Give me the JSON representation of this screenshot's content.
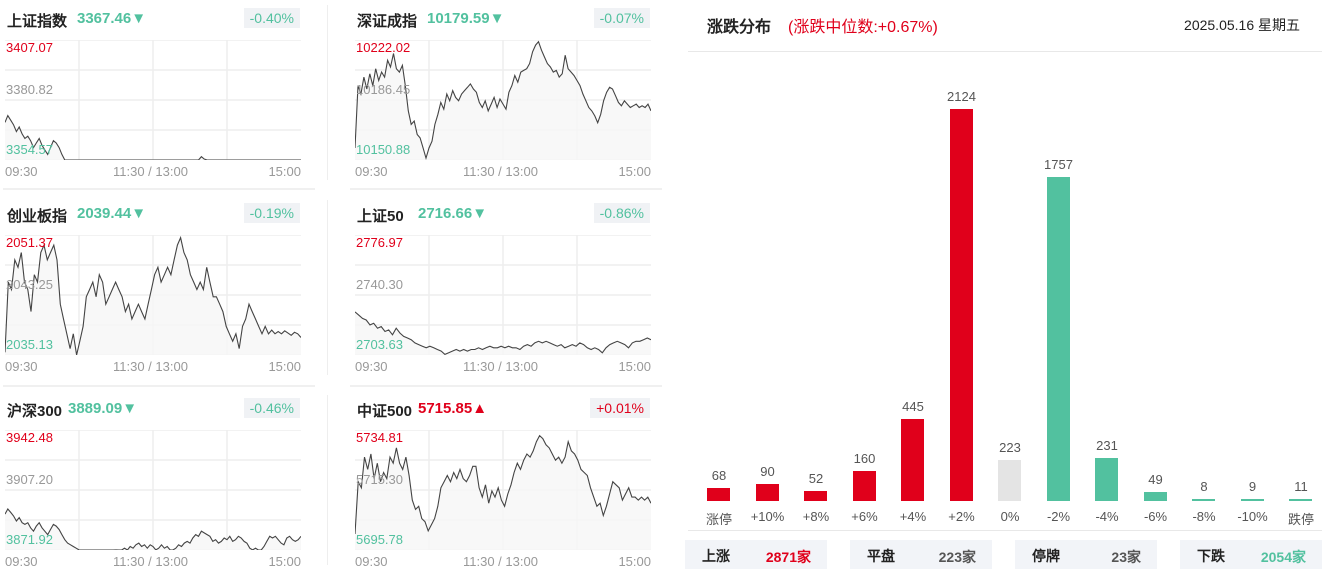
{
  "indices": [
    {
      "name": "上证指数",
      "value": "3367.46",
      "arrow": "▼",
      "dir": "down",
      "pct": "-0.40%",
      "y_high": "3407.07",
      "y_mid": "3380.82",
      "y_low": "3354.57",
      "series": [
        3371,
        3374,
        3372,
        3370,
        3367,
        3369,
        3366,
        3364,
        3365,
        3363,
        3360,
        3362,
        3364,
        3361,
        3359,
        3357,
        3360,
        3363,
        3362,
        3360,
        3357,
        3354,
        3351,
        3349,
        3349,
        3347,
        3346,
        3345,
        3343,
        3341,
        3342,
        3340,
        3339,
        3340,
        3343,
        3342,
        3344,
        3343,
        3344,
        3345,
        3344,
        3343,
        3346,
        3344,
        3347,
        3346,
        3348,
        3349,
        3347,
        3348,
        3346,
        3348,
        3347,
        3345,
        3346,
        3348,
        3346,
        3347,
        3345,
        3344,
        3346,
        3348,
        3347,
        3349,
        3350,
        3349,
        3352,
        3354,
        3353,
        3356,
        3355,
        3354,
        3353,
        3350,
        3351,
        3349,
        3350,
        3352,
        3351,
        3353,
        3350,
        3351,
        3353,
        3352,
        3350,
        3349,
        3346,
        3345,
        3346,
        3344,
        3343,
        3347,
        3350,
        3353,
        3352,
        3353,
        3351,
        3349,
        3348,
        3352,
        3353,
        3351,
        3350,
        3351,
        3353
      ]
    },
    {
      "name": "深证成指",
      "value": "10179.59",
      "arrow": "▼",
      "dir": "down",
      "pct": "-0.07%",
      "y_high": "10222.02",
      "y_mid": "10186.45",
      "y_low": "10150.88",
      "series": [
        10158,
        10195,
        10190,
        10200,
        10193,
        10202,
        10195,
        10205,
        10198,
        10203,
        10200,
        10210,
        10206,
        10214,
        10205,
        10203,
        10207,
        10195,
        10180,
        10172,
        10174,
        10166,
        10164,
        10158,
        10152,
        10158,
        10162,
        10172,
        10178,
        10185,
        10181,
        10190,
        10186,
        10192,
        10188,
        10186,
        10190,
        10192,
        10194,
        10196,
        10193,
        10191,
        10185,
        10182,
        10186,
        10180,
        10184,
        10188,
        10182,
        10187,
        10184,
        10181,
        10191,
        10195,
        10201,
        10197,
        10203,
        10204,
        10205,
        10208,
        10215,
        10219,
        10221,
        10216,
        10212,
        10208,
        10206,
        10203,
        10204,
        10200,
        10202,
        10213,
        10205,
        10203,
        10201,
        10198,
        10195,
        10190,
        10186,
        10182,
        10180,
        10177,
        10173,
        10178,
        10186,
        10191,
        10194,
        10193,
        10189,
        10185,
        10183,
        10186,
        10184,
        10182,
        10183,
        10184,
        10182,
        10183,
        10182,
        10184,
        10180
      ]
    },
    {
      "name": "创业板指",
      "value": "2039.44",
      "arrow": "▼",
      "dir": "down",
      "pct": "-0.19%",
      "y_high": "2051.37",
      "y_mid": "2043.25",
      "y_low": "2035.13",
      "series": [
        2035.5,
        2045,
        2044,
        2048,
        2047,
        2049,
        2045,
        2044,
        2041,
        2046,
        2045,
        2049,
        2050,
        2048,
        2049,
        2050,
        2048,
        2042,
        2040,
        2038,
        2036,
        2038,
        2035,
        2037,
        2039,
        2043,
        2044,
        2045,
        2043,
        2046,
        2045,
        2042,
        2043,
        2044,
        2045,
        2044,
        2043,
        2041,
        2042,
        2040,
        2041,
        2042,
        2041,
        2040,
        2042,
        2044,
        2046,
        2047,
        2045,
        2046,
        2047,
        2046,
        2048,
        2050,
        2051,
        2049,
        2048,
        2046,
        2045,
        2044,
        2045,
        2044,
        2047,
        2045,
        2043,
        2043,
        2042,
        2041,
        2039,
        2038,
        2037,
        2038,
        2036,
        2039,
        2040,
        2042,
        2041,
        2040,
        2039,
        2038,
        2039,
        2038,
        2038.5,
        2038,
        2038.3,
        2038,
        2038.4,
        2038.1,
        2037.8,
        2038.2,
        2038,
        2037.5
      ]
    },
    {
      "name": "上证50",
      "value": "2716.66",
      "arrow": "▼",
      "dir": "down",
      "pct": "-0.86%",
      "y_high": "2776.97",
      "y_mid": "2740.30",
      "y_low": "2703.63",
      "series": [
        2730,
        2728,
        2726,
        2725,
        2722,
        2723,
        2720,
        2721,
        2718,
        2719,
        2716,
        2720,
        2717,
        2715,
        2714,
        2713,
        2711,
        2710,
        2709,
        2708,
        2709,
        2708,
        2707,
        2706,
        2704,
        2705,
        2706,
        2707,
        2706,
        2707,
        2706,
        2707,
        2707,
        2708,
        2707,
        2708,
        2709,
        2708,
        2708,
        2709,
        2708,
        2709,
        2708,
        2708,
        2707,
        2709,
        2710,
        2709,
        2711,
        2712,
        2711,
        2712,
        2711,
        2710,
        2709,
        2710,
        2708,
        2709,
        2710,
        2709,
        2711,
        2710,
        2708,
        2707,
        2708,
        2707,
        2705,
        2708,
        2710,
        2711,
        2712,
        2711,
        2710,
        2708,
        2711,
        2712,
        2712,
        2713,
        2714,
        2713
      ]
    },
    {
      "name": "沪深300",
      "value": "3889.09",
      "arrow": "▼",
      "dir": "down",
      "pct": "-0.46%",
      "y_high": "3942.48",
      "y_mid": "3907.20",
      "y_low": "3871.92",
      "series": [
        3893,
        3896,
        3894,
        3892,
        3889,
        3891,
        3888,
        3887,
        3888,
        3885,
        3883,
        3886,
        3888,
        3885,
        3883,
        3881,
        3884,
        3887,
        3886,
        3884,
        3881,
        3878,
        3876,
        3875,
        3874,
        3873,
        3872,
        3871,
        3870,
        3868,
        3869,
        3867,
        3866,
        3867,
        3870,
        3869,
        3871,
        3870,
        3871,
        3872,
        3871,
        3870,
        3873,
        3871,
        3874,
        3873,
        3875,
        3876,
        3874,
        3875,
        3873,
        3875,
        3874,
        3872,
        3873,
        3875,
        3873,
        3874,
        3872,
        3871,
        3873,
        3875,
        3874,
        3876,
        3877,
        3876,
        3879,
        3881,
        3880,
        3883,
        3882,
        3881,
        3880,
        3877,
        3878,
        3876,
        3877,
        3879,
        3878,
        3880,
        3877,
        3878,
        3880,
        3879,
        3877,
        3876,
        3873,
        3872,
        3873,
        3871,
        3870,
        3874,
        3877,
        3880,
        3879,
        3880,
        3878,
        3876,
        3875,
        3879,
        3880,
        3878,
        3877,
        3878,
        3880
      ]
    },
    {
      "name": "中证500",
      "value": "5715.85",
      "arrow": "▲",
      "dir": "up",
      "pct": "+0.01%",
      "y_high": "5734.81",
      "y_mid": "5715.30",
      "y_low": "5695.78",
      "series": [
        5701,
        5718,
        5716,
        5726,
        5722,
        5727,
        5719,
        5724,
        5718,
        5721,
        5719,
        5726,
        5724,
        5729,
        5724,
        5722,
        5726,
        5720,
        5712,
        5709,
        5710,
        5706,
        5705,
        5702,
        5704,
        5706,
        5710,
        5716,
        5718,
        5720,
        5718,
        5721,
        5719,
        5722,
        5719,
        5718,
        5720,
        5723,
        5723,
        5716,
        5713,
        5717,
        5711,
        5715,
        5713,
        5716,
        5712,
        5710,
        5714,
        5717,
        5721,
        5724,
        5722,
        5725,
        5727,
        5726,
        5728,
        5731,
        5733,
        5732,
        5730,
        5729,
        5727,
        5725,
        5726,
        5724,
        5726,
        5731,
        5728,
        5727,
        5725,
        5722,
        5721,
        5720,
        5716,
        5713,
        5710,
        5711,
        5707,
        5710,
        5714,
        5718,
        5717,
        5716,
        5712,
        5714,
        5716,
        5713,
        5713,
        5712,
        5713,
        5712,
        5713,
        5711
      ]
    }
  ],
  "time_axis": {
    "start": "09:30",
    "mid": "11:30 / 13:00",
    "end": "15:00"
  },
  "distribution": {
    "title": "涨跌分布",
    "subtitle": "(涨跌中位数:+0.67%)",
    "date": "2025.05.16 星期五",
    "summary": [
      {
        "label": "上涨",
        "value": "2871家",
        "dir": "up"
      },
      {
        "label": "平盘",
        "value": "223家",
        "dir": "flat"
      },
      {
        "label": "停牌",
        "value": "23家",
        "dir": "flat"
      },
      {
        "label": "下跌",
        "value": "2054家",
        "dir": "down"
      }
    ]
  },
  "chart_data": {
    "type": "bar",
    "title": "涨跌分布",
    "categories": [
      "涨停",
      "+10%",
      "+8%",
      "+6%",
      "+4%",
      "+2%",
      "0%",
      "-2%",
      "-4%",
      "-6%",
      "-8%",
      "-10%",
      "跌停"
    ],
    "values": [
      68,
      90,
      52,
      160,
      445,
      2124,
      223,
      1757,
      231,
      49,
      8,
      9,
      11
    ],
    "colors": [
      "#e0001b",
      "#e0001b",
      "#e0001b",
      "#e0001b",
      "#e0001b",
      "#e0001b",
      "#e4e4e4",
      "#52c19f",
      "#52c19f",
      "#52c19f",
      "#52c19f",
      "#52c19f",
      "#52c19f"
    ],
    "xlabel": "",
    "ylabel": "",
    "grid": false
  },
  "colors": {
    "up": "#e0001b",
    "down": "#52c19f",
    "flat": "#555555",
    "neutral_bar": "#e4e4e4"
  }
}
